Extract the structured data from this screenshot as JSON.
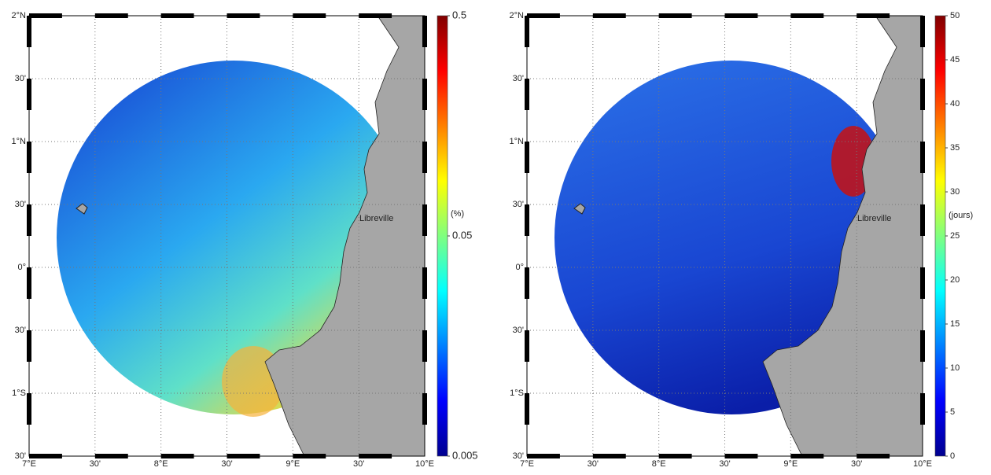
{
  "lat_labels": [
    "2°N",
    "30'",
    "1°N",
    "30'",
    "0°",
    "30'",
    "1°S",
    "30'"
  ],
  "lon_labels": [
    "7°E",
    "30'",
    "8°E",
    "30'",
    "9°E",
    "30'",
    "10°E"
  ],
  "panels": [
    {
      "place": "Libreville",
      "colorbar": {
        "label": "(%)",
        "scale": "log",
        "lim": [
          0.005,
          0.5
        ],
        "ticks": [
          0.005,
          0.05,
          0.5
        ]
      }
    },
    {
      "place": "Libreville",
      "colorbar": {
        "label": "(jours)",
        "scale": "linear",
        "lim": [
          0,
          50
        ],
        "ticks": [
          0,
          5,
          10,
          15,
          20,
          25,
          30,
          35,
          40,
          45,
          50
        ]
      }
    }
  ]
}
